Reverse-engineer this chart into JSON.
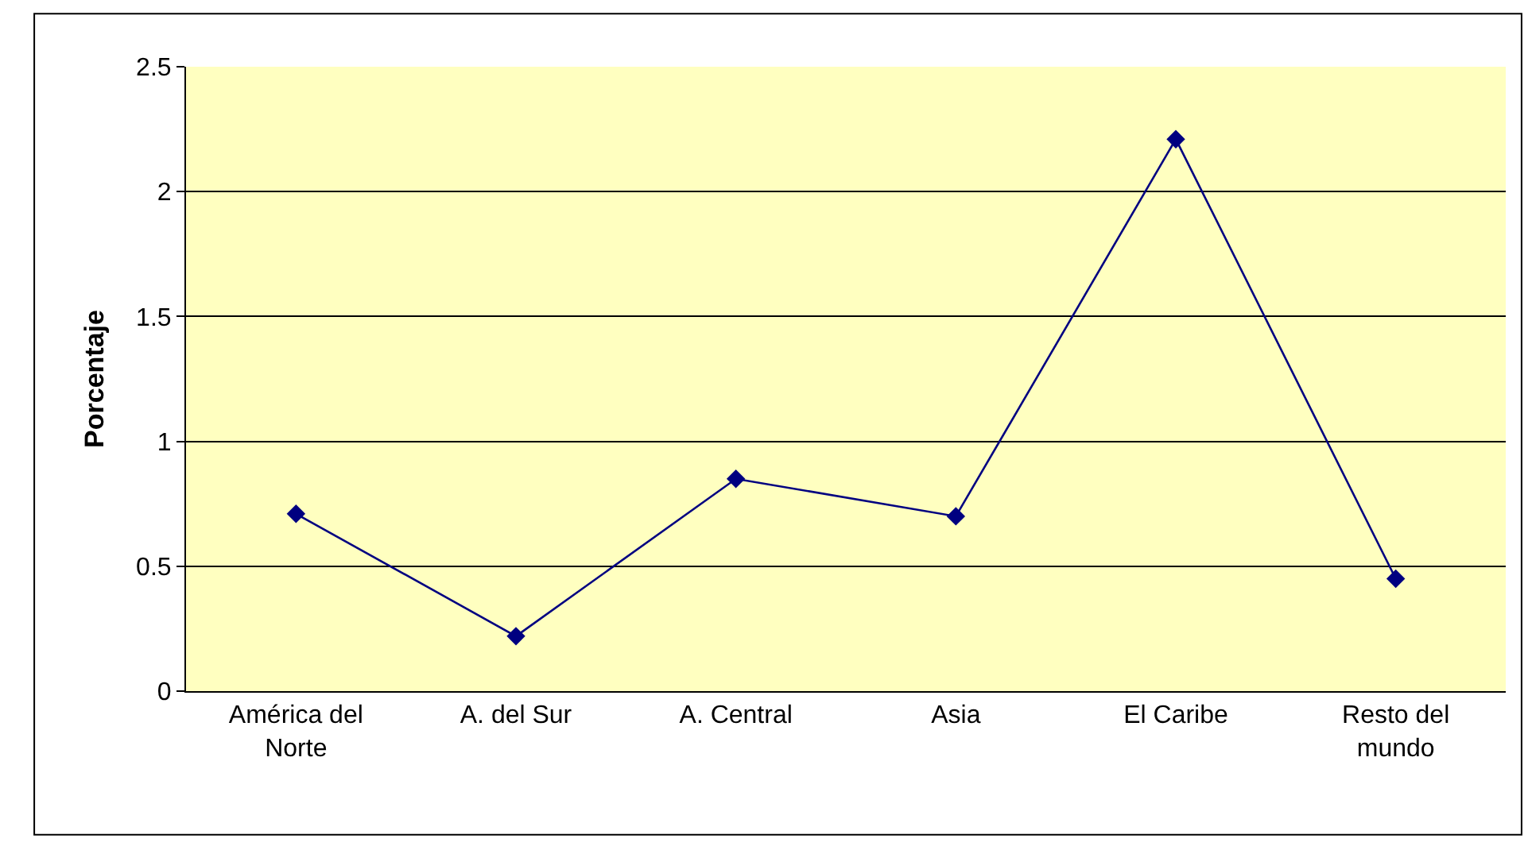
{
  "chart_data": {
    "type": "line",
    "ylabel": "Porcentaje",
    "categories": [
      "América del Norte",
      "A. del Sur",
      "A. Central",
      "Asia",
      "El Caribe",
      "Resto del mundo"
    ],
    "series": [
      {
        "color": "#000080",
        "values": [
          0.71,
          0.22,
          0.85,
          0.7,
          2.21,
          0.45
        ]
      }
    ],
    "ylim": [
      0,
      2.5
    ],
    "yticks": [
      0,
      0.5,
      1,
      1.5,
      2,
      2.5
    ],
    "grid": "y",
    "marker": "diamond",
    "line_style": "solid"
  }
}
